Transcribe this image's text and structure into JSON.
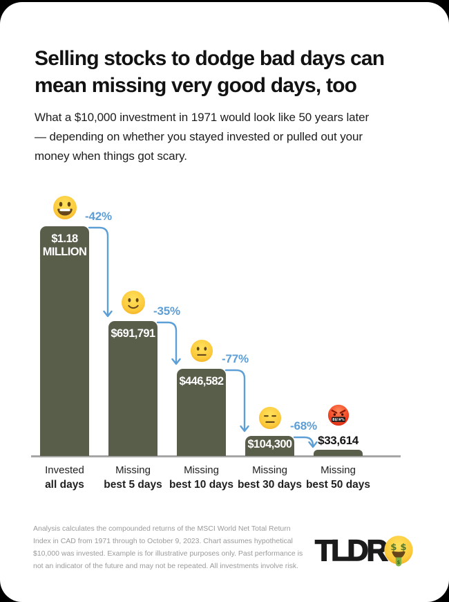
{
  "header": {
    "title": "Selling stocks to dodge bad days can\nmean missing very good days, too",
    "subtitle": "What a $10,000 investment in 1971 would look like 50 years later\n— depending on whether you stayed invested or pulled out your\nmoney when things got scary."
  },
  "chart_data": {
    "type": "bar",
    "title": "Selling stocks to dodge bad days can mean missing very good days, too",
    "categories": [
      {
        "line1": "Invested",
        "line2": "all days"
      },
      {
        "line1": "Missing",
        "line2": "best 5 days"
      },
      {
        "line1": "Missing",
        "line2": "best 10 days"
      },
      {
        "line1": "Missing",
        "line2": "best 30 days"
      },
      {
        "line1": "Missing",
        "line2": "best 50 days"
      }
    ],
    "values": [
      1180000,
      691791,
      446582,
      104300,
      33614
    ],
    "value_labels": [
      "$1.18 MILLION",
      "$691,791",
      "$446,582",
      "$104,300",
      "$33,614"
    ],
    "pct_changes": [
      "-42%",
      "-35%",
      "-77%",
      "-68%"
    ],
    "emojis": [
      "grinning-face",
      "slightly-smiling-face",
      "neutral-face",
      "expressionless-face",
      "cursing-face"
    ],
    "bar_color": "#585E4A",
    "arrow_color": "#5C9ED6",
    "axis_color": "#a6a6a6",
    "ylim": [
      0,
      1180000
    ],
    "grid": false,
    "legend": false
  },
  "footer": {
    "disclaimer": "Analysis calculates the compounded returns of the MSCI World Net Total Return\nIndex in CAD from 1971 through to October 9, 2023. Chart assumes hypothetical\n$10,000 was invested. Example is for illustrative purposes only. Past performance is\nnot an indicator of the future and may not be repeated. All investments involve risk.",
    "logo_text": "TLDR",
    "logo_emoji": "money-mouth-face"
  }
}
